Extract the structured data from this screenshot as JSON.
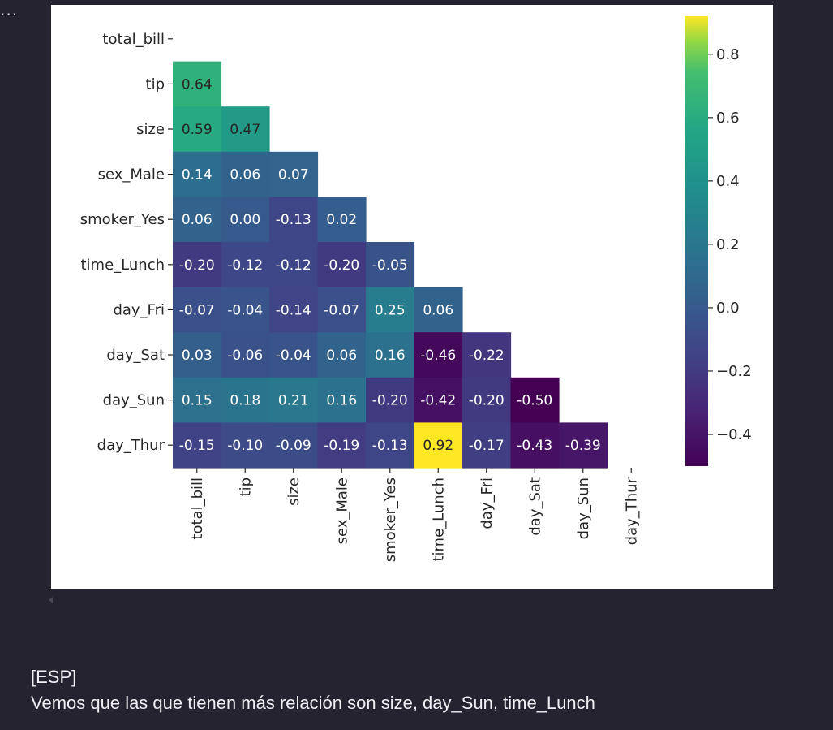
{
  "cell": {
    "more_label": "..."
  },
  "markdown": {
    "tag": "[ESP]",
    "text": "Vemos que las que tienen más relación son size, day_Sun, time_Lunch"
  },
  "chart_data": {
    "type": "heatmap",
    "mask": "upper-triangle",
    "colormap": "viridis",
    "rows": [
      "total_bill",
      "tip",
      "size",
      "sex_Male",
      "smoker_Yes",
      "time_Lunch",
      "day_Fri",
      "day_Sat",
      "day_Sun",
      "day_Thur"
    ],
    "columns": [
      "total_bill",
      "tip",
      "size",
      "sex_Male",
      "smoker_Yes",
      "time_Lunch",
      "day_Fri",
      "day_Sat",
      "day_Sun",
      "day_Thur"
    ],
    "values": [
      [],
      [
        "0.64"
      ],
      [
        "0.59",
        "0.47"
      ],
      [
        "0.14",
        "0.06",
        "0.07"
      ],
      [
        "0.06",
        "0.00",
        "-0.13",
        "0.02"
      ],
      [
        "-0.20",
        "-0.12",
        "-0.12",
        "-0.20",
        "-0.05"
      ],
      [
        "-0.07",
        "-0.04",
        "-0.14",
        "-0.07",
        "0.25",
        "0.06"
      ],
      [
        "0.03",
        "-0.06",
        "-0.04",
        "0.06",
        "0.16",
        "-0.46",
        "-0.22"
      ],
      [
        "0.15",
        "0.18",
        "0.21",
        "0.16",
        "-0.20",
        "-0.42",
        "-0.20",
        "-0.50"
      ],
      [
        "-0.15",
        "-0.10",
        "-0.09",
        "-0.19",
        "-0.13",
        "0.92",
        "-0.17",
        "-0.43",
        "-0.39"
      ]
    ],
    "colorbar": {
      "range": [
        -0.5,
        0.92
      ],
      "ticks": [
        0.8,
        0.6,
        0.4,
        0.2,
        0.0,
        -0.2,
        -0.4
      ],
      "tick_labels": [
        "0.8",
        "0.6",
        "0.4",
        "0.2",
        "0.0",
        "−0.2",
        "−0.4"
      ]
    }
  }
}
